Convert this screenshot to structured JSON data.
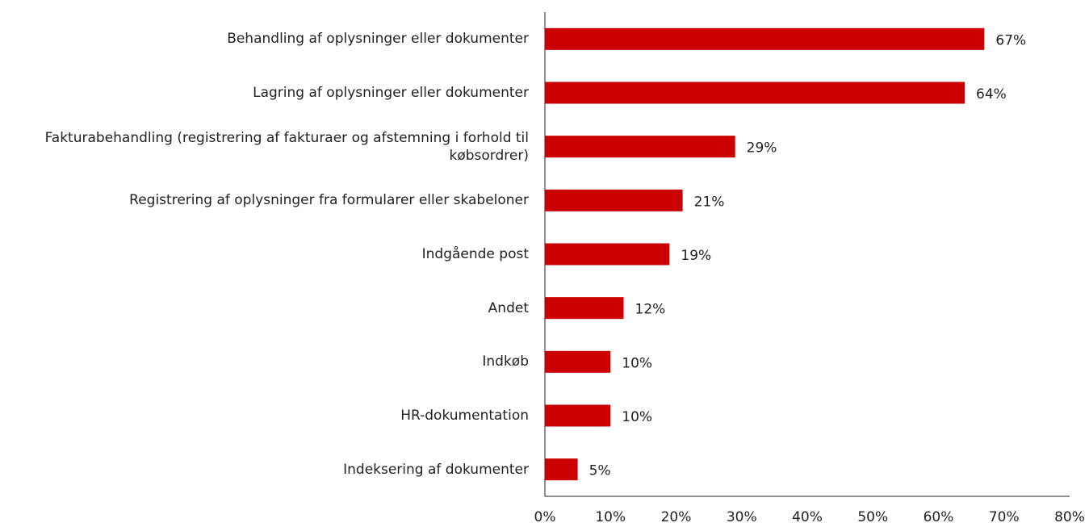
{
  "chart_data": {
    "type": "bar",
    "orientation": "horizontal",
    "categories": [
      "Behandling af oplysninger eller dokumenter",
      "Lagring af oplysninger eller dokumenter",
      "Fakturabehandling (registrering af fakturaer og afstemning i forhold til købsordrer)",
      "Registrering af oplysninger fra formularer eller skabeloner",
      "Indgående post",
      "Andet",
      "Indkøb",
      "HR-dokumentation",
      "Indeksering af dokumenter"
    ],
    "values": [
      67,
      64,
      29,
      21,
      19,
      12,
      10,
      10,
      5
    ],
    "value_labels": [
      "67%",
      "64%",
      "29%",
      "21%",
      "19%",
      "12%",
      "10%",
      "10%",
      "5%"
    ],
    "color": "#cc0000",
    "xlim": [
      0,
      80
    ],
    "xticks": [
      {
        "value": 0,
        "label": "0%"
      },
      {
        "value": 10,
        "label": "10%"
      },
      {
        "value": 20,
        "label": "20%"
      },
      {
        "value": 30,
        "label": "30%"
      },
      {
        "value": 40,
        "label": "40%"
      },
      {
        "value": 50,
        "label": "50%"
      },
      {
        "value": 60,
        "label": "60%"
      },
      {
        "value": 70,
        "label": "70%"
      },
      {
        "value": 80,
        "label": "80%"
      }
    ],
    "grid": false
  }
}
